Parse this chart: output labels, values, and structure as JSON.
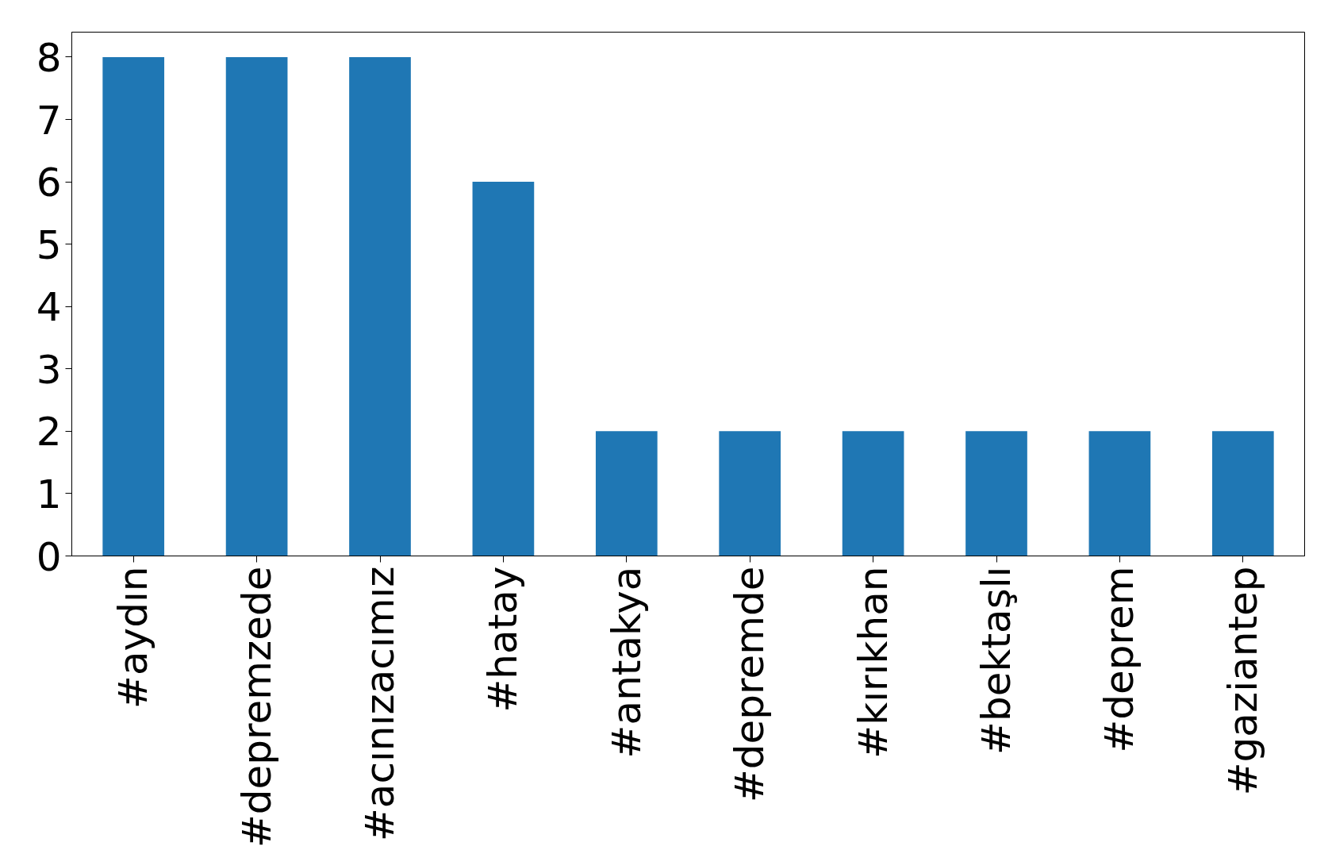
{
  "chart_data": {
    "type": "bar",
    "categories": [
      "#aydın",
      "#depremzede",
      "#acınızacımız",
      "#hatay",
      "#antakya",
      "#depremde",
      "#kırıkhan",
      "#bektaşlı",
      "#deprem",
      "#gaziantep"
    ],
    "values": [
      8,
      8,
      8,
      6,
      2,
      2,
      2,
      2,
      2,
      2
    ],
    "color": "#1f77b4",
    "ylim": [
      0,
      8.4
    ],
    "yticks": [
      0,
      1,
      2,
      3,
      4,
      5,
      6,
      7,
      8
    ],
    "grid": false
  }
}
